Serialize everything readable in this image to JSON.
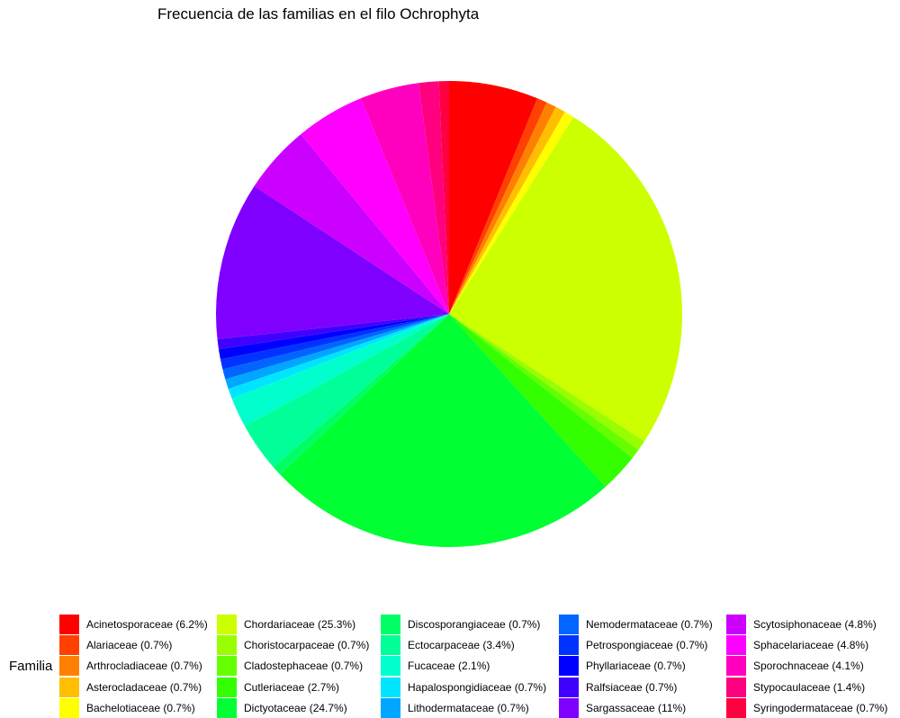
{
  "chart_data": {
    "type": "pie",
    "title": "Frecuencia de las familias en el filo Ochrophyta",
    "legend_title": "Familia",
    "legend_position": "bottom",
    "slices": [
      {
        "label": "Acinetosporaceae (6.2%)",
        "value": 6.2,
        "color": "#FF0000"
      },
      {
        "label": "Alariaceae (0.7%)",
        "value": 0.7,
        "color": "#FF4000"
      },
      {
        "label": "Arthrocladiaceae (0.7%)",
        "value": 0.7,
        "color": "#FF8000"
      },
      {
        "label": "Asterocladaceae (0.7%)",
        "value": 0.7,
        "color": "#FFBF00"
      },
      {
        "label": "Bachelotiaceae (0.7%)",
        "value": 0.7,
        "color": "#FFFF00"
      },
      {
        "label": "Chordariaceae (25.3%)",
        "value": 25.3,
        "color": "#CCFF00"
      },
      {
        "label": "Choristocarpaceae (0.7%)",
        "value": 0.7,
        "color": "#99FF00"
      },
      {
        "label": "Cladostephaceae (0.7%)",
        "value": 0.7,
        "color": "#66FF00"
      },
      {
        "label": "Cutleriaceae (2.7%)",
        "value": 2.7,
        "color": "#33FF00"
      },
      {
        "label": "Dictyotaceae (24.7%)",
        "value": 24.7,
        "color": "#00FF33"
      },
      {
        "label": "Discosporangiaceae (0.7%)",
        "value": 0.7,
        "color": "#00FF66"
      },
      {
        "label": "Ectocarpaceae (3.4%)",
        "value": 3.4,
        "color": "#00FF99"
      },
      {
        "label": "Fucaceae (2.1%)",
        "value": 2.1,
        "color": "#00FFCC"
      },
      {
        "label": "Hapalospongidiaceae (0.7%)",
        "value": 0.7,
        "color": "#00E5FF"
      },
      {
        "label": "Lithodermataceae (0.7%)",
        "value": 0.7,
        "color": "#00A6FF"
      },
      {
        "label": "Nemodermataceae (0.7%)",
        "value": 0.7,
        "color": "#0066FF"
      },
      {
        "label": "Petrospongiaceae (0.7%)",
        "value": 0.7,
        "color": "#0033FF"
      },
      {
        "label": "Phyllariaceae (0.7%)",
        "value": 0.7,
        "color": "#0000FF"
      },
      {
        "label": "Ralfsiaceae (0.7%)",
        "value": 0.7,
        "color": "#4000FF"
      },
      {
        "label": "Sargassaceae (11%)",
        "value": 11,
        "color": "#8000FF"
      },
      {
        "label": "Scytosiphonaceae (4.8%)",
        "value": 4.8,
        "color": "#CC00FF"
      },
      {
        "label": "Sphacelariaceae (4.8%)",
        "value": 4.8,
        "color": "#FF00FF"
      },
      {
        "label": "Sporochnaceae (4.1%)",
        "value": 4.1,
        "color": "#FF00BF"
      },
      {
        "label": "Stypocaulaceae (1.4%)",
        "value": 1.4,
        "color": "#FF0080"
      },
      {
        "label": "Syringodermataceae (0.7%)",
        "value": 0.7,
        "color": "#FF0040"
      }
    ]
  }
}
